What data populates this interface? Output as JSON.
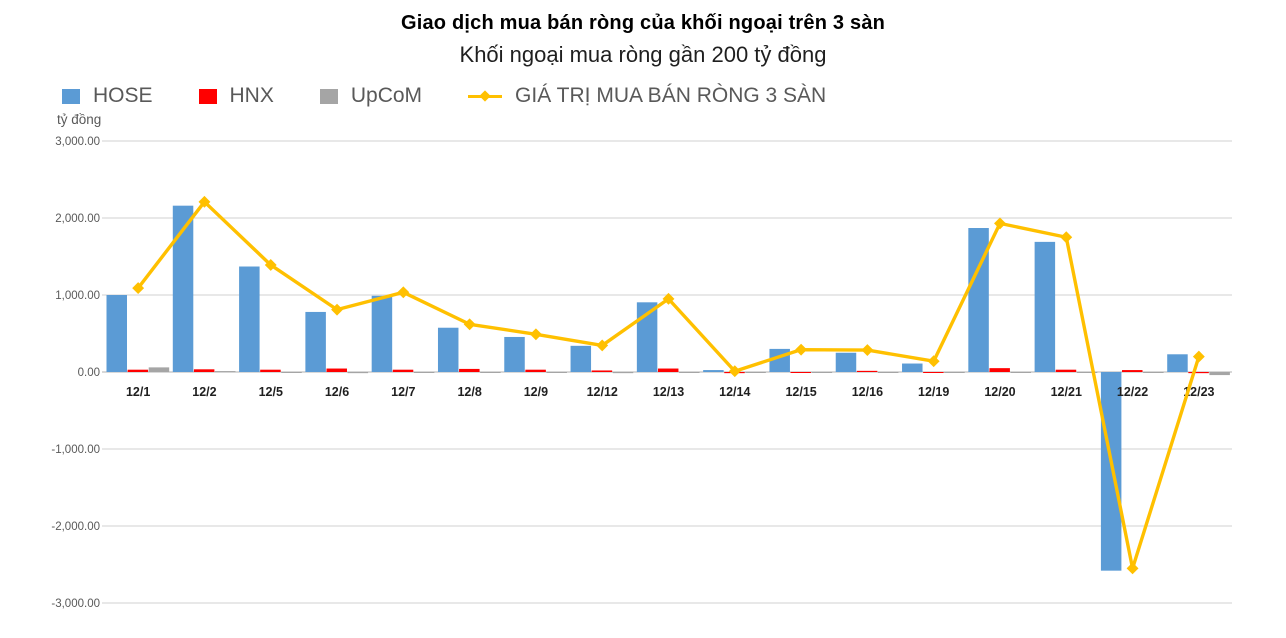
{
  "header": {
    "title": "Giao dịch mua bán ròng của khối ngoại trên 3 sàn",
    "subtitle": "Khối ngoại mua ròng gần 200 tỷ đồng"
  },
  "colors": {
    "hose": "#5B9BD5",
    "hnx": "#FF0000",
    "upcom": "#A5A5A5",
    "line": "#FFC000",
    "grid": "#D9D9D9",
    "zero_line": "#C0C0C0",
    "axis_text": "#595959",
    "x_label": "#1F1F1F"
  },
  "chart_data": {
    "type": "bar",
    "title": "Giao dịch mua bán ròng của khối ngoại trên 3 sàn",
    "subtitle": "Khối ngoại mua ròng gần 200 tỷ đồng",
    "unit_label": "tỷ đồng",
    "xlabel": "",
    "ylabel": "tỷ đồng",
    "ylim": [
      -3000,
      3000
    ],
    "ytick_step": 1000,
    "ytick_labels": [
      "3,000.00",
      "2,000.00",
      "1,000.00",
      "0.00",
      "-1,000.00",
      "-2,000.00",
      "-3,000.00"
    ],
    "grid": true,
    "legend_position": "top-left",
    "categories": [
      "12/1",
      "12/2",
      "12/5",
      "12/6",
      "12/7",
      "12/8",
      "12/9",
      "12/12",
      "12/13",
      "12/14",
      "12/15",
      "12/16",
      "12/19",
      "12/20",
      "12/21",
      "12/22",
      "12/23"
    ],
    "series": [
      {
        "name": "HOSE",
        "type": "bar",
        "color_key": "hose",
        "values": [
          1000,
          2160,
          1370,
          780,
          990,
          575,
          455,
          340,
          905,
          25,
          300,
          250,
          110,
          1870,
          1690,
          -2580,
          230
        ]
      },
      {
        "name": "HNX",
        "type": "bar",
        "color_key": "hnx",
        "values": [
          30,
          35,
          30,
          45,
          30,
          40,
          30,
          20,
          45,
          -15,
          -10,
          15,
          -12,
          50,
          30,
          25,
          -15
        ]
      },
      {
        "name": "UpCoM",
        "type": "bar",
        "color_key": "upcom",
        "values": [
          60,
          12,
          -10,
          -15,
          -10,
          -10,
          -12,
          -15,
          -10,
          -10,
          -8,
          -10,
          -8,
          -10,
          -10,
          -8,
          -40
        ]
      },
      {
        "name": "GIÁ TRỊ MUA BÁN RÒNG 3 SÀN",
        "type": "line",
        "color_key": "line",
        "values": [
          1090,
          2210,
          1390,
          810,
          1035,
          620,
          490,
          345,
          950,
          10,
          290,
          285,
          140,
          1930,
          1750,
          -2550,
          200
        ]
      }
    ]
  }
}
